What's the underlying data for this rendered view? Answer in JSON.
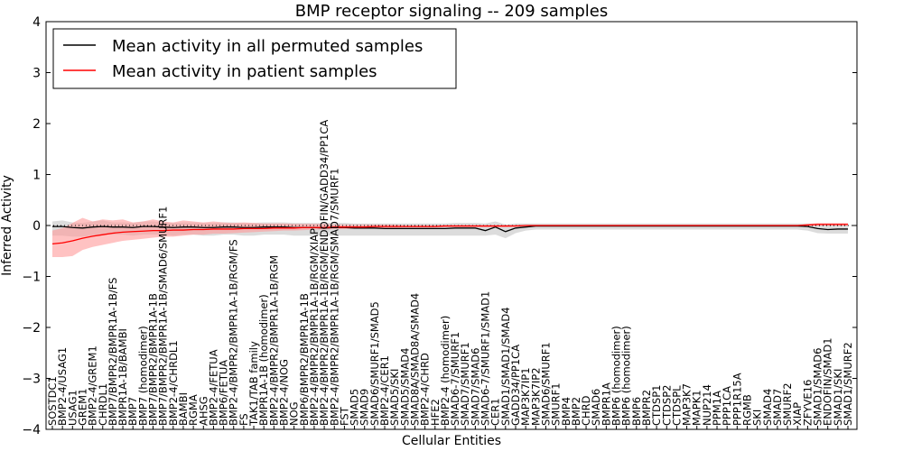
{
  "chart_data": {
    "type": "line",
    "title": "BMP receptor signaling -- 209 samples",
    "xlabel": "Cellular Entities",
    "ylabel": "Inferred Activity",
    "ylim": [
      -4,
      4
    ],
    "yticks": [
      -4,
      -3,
      -2,
      -1,
      0,
      1,
      2,
      3,
      4
    ],
    "ytick_labels": [
      "−4",
      "−3",
      "−2",
      "−1",
      "0",
      "1",
      "2",
      "3",
      "4"
    ],
    "legend": {
      "placement": "top-left",
      "entries": [
        {
          "label": "Mean activity in all permuted samples",
          "color": "#000000"
        },
        {
          "label": "Mean activity in patient samples",
          "color": "#ff0000"
        }
      ]
    },
    "categories": [
      "SOSTDC1",
      "BMP2-4/USAG1",
      "USAG1",
      "GREM1",
      "BMP2-4/GREM1",
      "CHRDL1",
      "BMP7/BMPR2/BMPR1A-1B/FS",
      "BMPR1A-1B/BAMBI",
      "BMP7",
      "BMP7 (homodimer)",
      "BMP7/BMPR2/BMPR1A-1B",
      "BMP7/BMPR2/BMPR1A-1B/SMAD6/SMURF1",
      "BMP2-4/CHRDL1",
      "BAMBI",
      "RGMA",
      "AHSG",
      "BMP2-4/FETUA",
      "BMP6/FETUA",
      "BMP2-4/BMPR2/BMPR1A-1B/RGM/FS",
      "FS",
      "TAK1/TAB family",
      "BMPR1A-1B (homodimer)",
      "BMP2-4/BMPR2/BMPR1A-1B/RGM",
      "BMP2-4/NOG",
      "NOG",
      "BMP6/BMPR2/BMPR1A-1B",
      "BMP2-4/BMPR2/BMPR1A-1B/RGM/XIAP",
      "BMP2-4/BMPR2/BMPR1A-1B/RGM/ENDOFIN/GADD34/PP1CA",
      "BMP2-4/BMPR2/BMPR1A-1B/RGM/SMAD7/SMURF1",
      "FST",
      "SMAD5",
      "SMAD9",
      "SMAD6/SMURF1/SMAD5",
      "BMP2-4/CER1",
      "SMAD5/SKI",
      "SMAD5/SMAD4",
      "SMAD8A/SMAD8A/SMAD4",
      "BMP2-4/CHRD",
      "HFE2",
      "BMP2-4 (homodimer)",
      "SMAD6-7/SMURF1",
      "SMAD7/SMURF1",
      "SMAD7/SMAD6",
      "SMAD6-7/SMURF1/SMAD1",
      "CER1",
      "SMAD1/SMAD1/SMAD4",
      "GADD34/PP1CA",
      "MAP3K7IP1",
      "MAP3K7IP2",
      "SMAD6/SMURF1",
      "SMURF1",
      "BMP4",
      "BMP2",
      "CHRD",
      "SMAD6",
      "BMPR1A",
      "BMP6 (homodimer)",
      "BMP6 (homodimer)",
      "BMP6",
      "BMPR2",
      "CTDSP1",
      "CTDSP2",
      "CTDSPL",
      "MAP3K7",
      "MAPK1",
      "NUP214",
      "PPM1A",
      "PPP1CA",
      "PPP1R15A",
      "RGMB",
      "SKI",
      "SMAD4",
      "SMAD7",
      "SMURF2",
      "XIAP",
      "ZFYVE16",
      "SMAD1/SMAD6",
      "ENDOFIN/SMAD1",
      "SMAD1/SKI",
      "SMAD1/SMURF2"
    ],
    "series": [
      {
        "name": "Mean activity in all permuted samples",
        "color": "#000000",
        "values": [
          -0.02,
          -0.02,
          -0.04,
          -0.05,
          -0.03,
          -0.02,
          -0.03,
          -0.03,
          -0.04,
          -0.02,
          -0.02,
          -0.03,
          -0.04,
          -0.03,
          -0.03,
          -0.04,
          -0.04,
          -0.03,
          -0.03,
          -0.04,
          -0.04,
          -0.03,
          -0.03,
          -0.03,
          -0.04,
          -0.04,
          -0.04,
          -0.05,
          -0.04,
          -0.04,
          -0.05,
          -0.05,
          -0.05,
          -0.06,
          -0.06,
          -0.06,
          -0.06,
          -0.06,
          -0.06,
          -0.06,
          -0.05,
          -0.05,
          -0.05,
          -0.1,
          -0.03,
          -0.12,
          -0.05,
          -0.03,
          -0.01,
          -0.01,
          -0.01,
          -0.01,
          -0.01,
          -0.01,
          -0.01,
          -0.01,
          -0.01,
          -0.01,
          -0.01,
          -0.01,
          -0.01,
          -0.01,
          -0.01,
          -0.01,
          -0.01,
          -0.01,
          -0.01,
          -0.01,
          -0.01,
          -0.01,
          -0.01,
          -0.01,
          -0.01,
          -0.01,
          -0.01,
          -0.02,
          -0.06,
          -0.08,
          -0.07,
          -0.07
        ]
      },
      {
        "name": "Mean activity in patient samples",
        "color": "#ff0000",
        "values": [
          -0.36,
          -0.34,
          -0.3,
          -0.25,
          -0.21,
          -0.18,
          -0.15,
          -0.13,
          -0.12,
          -0.11,
          -0.1,
          -0.1,
          -0.09,
          -0.09,
          -0.08,
          -0.08,
          -0.07,
          -0.07,
          -0.07,
          -0.06,
          -0.06,
          -0.06,
          -0.05,
          -0.05,
          -0.05,
          -0.04,
          -0.04,
          -0.04,
          -0.03,
          -0.03,
          -0.03,
          -0.03,
          -0.02,
          -0.02,
          -0.02,
          -0.02,
          -0.02,
          -0.02,
          -0.02,
          -0.01,
          -0.01,
          -0.01,
          -0.01,
          -0.01,
          -0.01,
          -0.01,
          -0.01,
          0.0,
          0.0,
          0.0,
          0.0,
          0.0,
          0.0,
          0.0,
          0.0,
          0.0,
          0.0,
          0.0,
          0.0,
          0.0,
          0.0,
          0.0,
          0.0,
          0.0,
          0.0,
          0.0,
          0.0,
          0.0,
          0.0,
          0.0,
          0.0,
          0.0,
          0.0,
          0.0,
          0.0,
          0.01,
          0.02,
          0.02,
          0.02,
          0.02
        ]
      }
    ],
    "bands": {
      "permuted": {
        "color": "#bfbfbf",
        "lower": [
          -0.2,
          -0.2,
          -0.22,
          -0.22,
          -0.2,
          -0.18,
          -0.18,
          -0.18,
          -0.2,
          -0.18,
          -0.18,
          -0.18,
          -0.2,
          -0.18,
          -0.18,
          -0.2,
          -0.2,
          -0.18,
          -0.18,
          -0.2,
          -0.2,
          -0.18,
          -0.18,
          -0.18,
          -0.2,
          -0.2,
          -0.2,
          -0.2,
          -0.2,
          -0.2,
          -0.2,
          -0.2,
          -0.2,
          -0.2,
          -0.2,
          -0.2,
          -0.2,
          -0.2,
          -0.2,
          -0.2,
          -0.2,
          -0.2,
          -0.2,
          -0.2,
          -0.18,
          -0.25,
          -0.15,
          -0.1,
          -0.08,
          -0.08,
          -0.08,
          -0.08,
          -0.08,
          -0.08,
          -0.08,
          -0.08,
          -0.08,
          -0.08,
          -0.08,
          -0.08,
          -0.08,
          -0.08,
          -0.08,
          -0.08,
          -0.08,
          -0.08,
          -0.08,
          -0.08,
          -0.08,
          -0.08,
          -0.08,
          -0.08,
          -0.08,
          -0.08,
          -0.08,
          -0.1,
          -0.15,
          -0.16,
          -0.16,
          -0.16
        ],
        "upper": [
          0.08,
          0.1,
          0.06,
          0.05,
          0.08,
          0.1,
          0.06,
          0.06,
          0.05,
          0.08,
          0.08,
          0.06,
          0.05,
          0.06,
          0.06,
          0.05,
          0.05,
          0.06,
          0.06,
          0.05,
          0.05,
          0.06,
          0.06,
          0.06,
          0.05,
          0.05,
          0.05,
          0.05,
          0.05,
          0.05,
          0.04,
          0.04,
          0.04,
          0.04,
          0.04,
          0.04,
          0.04,
          0.04,
          0.04,
          0.04,
          0.05,
          0.05,
          0.05,
          0.04,
          0.08,
          0.02,
          0.04,
          0.04,
          0.04,
          0.04,
          0.04,
          0.04,
          0.04,
          0.04,
          0.04,
          0.04,
          0.04,
          0.04,
          0.04,
          0.04,
          0.04,
          0.04,
          0.04,
          0.04,
          0.04,
          0.04,
          0.04,
          0.04,
          0.04,
          0.04,
          0.04,
          0.04,
          0.04,
          0.04,
          0.04,
          0.04,
          0.03,
          0.02,
          0.02,
          0.02
        ]
      },
      "patient": {
        "color": "#ff9999",
        "lower": [
          -0.62,
          -0.62,
          -0.6,
          -0.48,
          -0.42,
          -0.38,
          -0.34,
          -0.3,
          -0.28,
          -0.26,
          -0.24,
          -0.22,
          -0.22,
          -0.2,
          -0.18,
          -0.18,
          -0.16,
          -0.16,
          -0.15,
          -0.14,
          -0.13,
          -0.12,
          -0.11,
          -0.1,
          -0.1,
          -0.09,
          -0.08,
          -0.08,
          -0.07,
          -0.07,
          -0.06,
          -0.06,
          -0.05,
          -0.05,
          -0.05,
          -0.04,
          -0.04,
          -0.04,
          -0.04,
          -0.03,
          -0.03,
          -0.03,
          -0.03,
          -0.03,
          -0.03,
          -0.03,
          -0.02,
          -0.02,
          -0.02,
          -0.02,
          -0.02,
          -0.02,
          -0.02,
          -0.02,
          -0.02,
          -0.02,
          -0.02,
          -0.02,
          -0.02,
          -0.02,
          -0.02,
          -0.02,
          -0.02,
          -0.02,
          -0.02,
          -0.02,
          -0.02,
          -0.02,
          -0.02,
          -0.02,
          -0.02,
          -0.02,
          -0.02,
          -0.02,
          -0.02,
          -0.01,
          0.0,
          0.0,
          0.0,
          0.0
        ],
        "upper": [
          -0.1,
          -0.05,
          0.05,
          0.15,
          0.08,
          0.12,
          0.1,
          0.12,
          0.06,
          0.08,
          0.12,
          0.08,
          0.06,
          0.1,
          0.08,
          0.06,
          0.08,
          0.06,
          0.05,
          0.06,
          0.05,
          0.04,
          0.04,
          0.04,
          0.03,
          0.03,
          0.03,
          0.03,
          0.02,
          0.02,
          0.02,
          0.02,
          0.02,
          0.02,
          0.02,
          0.01,
          0.01,
          0.01,
          0.01,
          0.01,
          0.01,
          0.01,
          0.01,
          0.01,
          0.01,
          0.01,
          0.01,
          0.01,
          0.01,
          0.01,
          0.01,
          0.01,
          0.01,
          0.01,
          0.01,
          0.01,
          0.01,
          0.01,
          0.01,
          0.01,
          0.01,
          0.01,
          0.01,
          0.01,
          0.01,
          0.01,
          0.01,
          0.01,
          0.01,
          0.01,
          0.01,
          0.01,
          0.01,
          0.01,
          0.01,
          0.03,
          0.05,
          0.05,
          0.05,
          0.05
        ]
      }
    }
  }
}
